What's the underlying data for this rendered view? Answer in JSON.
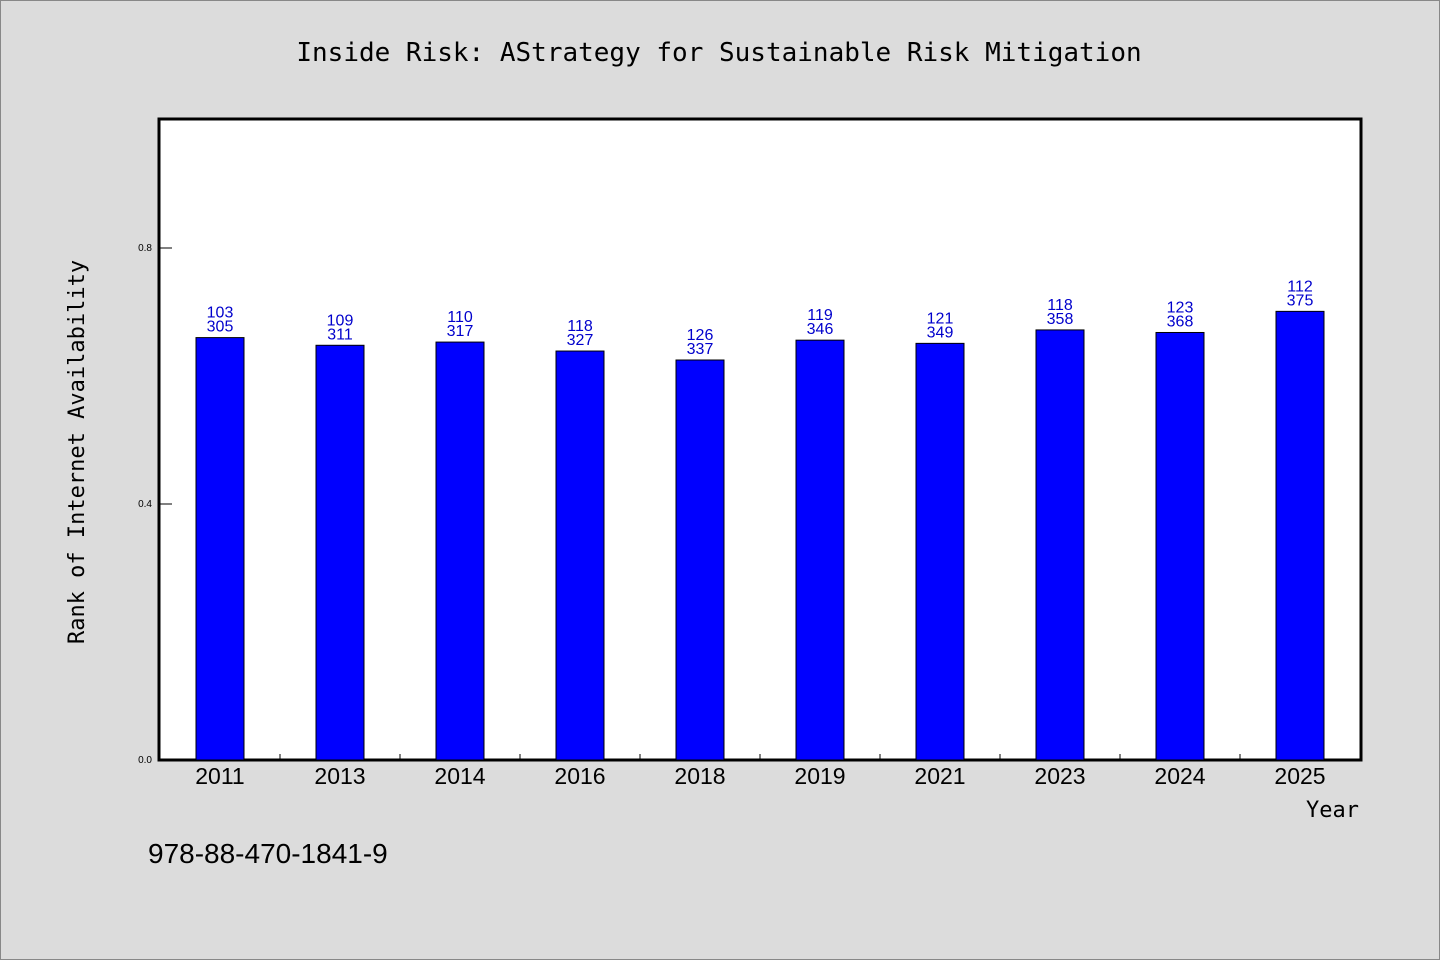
{
  "chart_data": {
    "type": "bar",
    "title": "Inside Risk: AStrategy for Sustainable Risk Mitigation",
    "xlabel": "Year",
    "ylabel": "Rank of Internet Availability",
    "categories": [
      "2011",
      "2013",
      "2014",
      "2016",
      "2018",
      "2019",
      "2021",
      "2023",
      "2024",
      "2025"
    ],
    "values": [
      0.66,
      0.648,
      0.653,
      0.639,
      0.625,
      0.656,
      0.651,
      0.672,
      0.668,
      0.701
    ],
    "labels_top": [
      "103",
      "109",
      "110",
      "118",
      "126",
      "119",
      "121",
      "118",
      "123",
      "112"
    ],
    "labels_bottom": [
      "305",
      "311",
      "317",
      "327",
      "337",
      "346",
      "349",
      "358",
      "368",
      "375"
    ],
    "ylim": [
      0.0,
      1.0
    ],
    "yticks": [
      "0.0",
      "0.4",
      "0.8"
    ],
    "bar_color": "#0000ff",
    "label_color": "#0000cc",
    "grid": false,
    "legend": "none"
  },
  "footer_text": "978-88-470-1841-9"
}
